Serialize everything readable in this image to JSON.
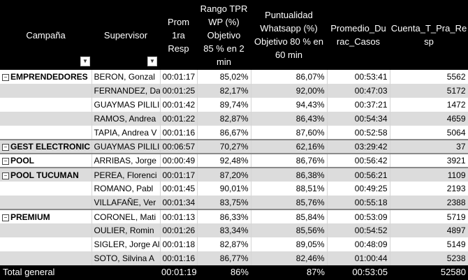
{
  "headers": {
    "campana": "Campaña",
    "supervisor": "Supervisor",
    "prom_1ra_resp": [
      "Prom",
      "1ra",
      "Resp"
    ],
    "rango_tpr": [
      "Rango TPR",
      "WP (%)",
      "Objetivo",
      "85 % en 2",
      "min"
    ],
    "puntualidad": [
      "Puntualidad",
      "Whatsapp (%)",
      "Objetivo 80 % en",
      "60 min"
    ],
    "promedio_durac": [
      "Promedio_Du",
      "rac_Casos"
    ],
    "cuenta": [
      "Cuenta_T_Pra_Re",
      "sp"
    ]
  },
  "filter_icon": "dropdown-arrow-icon",
  "rows": [
    {
      "campana": "EMPRENDEDORES",
      "supervisor": "BERON, Gonzal",
      "prom": "00:01:17",
      "rango": "85,02%",
      "puntualidad": "86,07%",
      "durac": "00:53:41",
      "cuenta": "5562"
    },
    {
      "campana": "",
      "supervisor": "FERNANDEZ, Da",
      "prom": "00:01:25",
      "rango": "82,17%",
      "puntualidad": "92,00%",
      "durac": "00:47:03",
      "cuenta": "5172"
    },
    {
      "campana": "",
      "supervisor": "GUAYMAS PILILI",
      "prom": "00:01:42",
      "rango": "89,74%",
      "puntualidad": "94,43%",
      "durac": "00:37:21",
      "cuenta": "1472"
    },
    {
      "campana": "",
      "supervisor": "RAMOS, Andrea",
      "prom": "00:01:22",
      "rango": "82,87%",
      "puntualidad": "86,43%",
      "durac": "00:54:34",
      "cuenta": "4659"
    },
    {
      "campana": "",
      "supervisor": "TAPIA, Andrea V",
      "prom": "00:01:16",
      "rango": "86,67%",
      "puntualidad": "87,60%",
      "durac": "00:52:58",
      "cuenta": "5064"
    },
    {
      "campana": "GEST ELECTRONIC",
      "supervisor": "GUAYMAS PILILI",
      "prom": "00:06:57",
      "rango": "70,27%",
      "puntualidad": "62,16%",
      "durac": "03:29:42",
      "cuenta": "37"
    },
    {
      "campana": "POOL",
      "supervisor": "ARRIBAS, Jorge",
      "prom": "00:00:49",
      "rango": "92,48%",
      "puntualidad": "86,76%",
      "durac": "00:56:42",
      "cuenta": "3921"
    },
    {
      "campana": "POOL TUCUMAN",
      "supervisor": "PEREA, Florenci",
      "prom": "00:01:17",
      "rango": "87,20%",
      "puntualidad": "86,38%",
      "durac": "00:56:21",
      "cuenta": "1109"
    },
    {
      "campana": "",
      "supervisor": "ROMANO, Pabl",
      "prom": "00:01:45",
      "rango": "90,01%",
      "puntualidad": "88,51%",
      "durac": "00:49:25",
      "cuenta": "2193"
    },
    {
      "campana": "",
      "supervisor": "VILLAFAÑE, Ver",
      "prom": "00:01:34",
      "rango": "83,75%",
      "puntualidad": "85,76%",
      "durac": "00:55:18",
      "cuenta": "2388"
    },
    {
      "campana": "PREMIUM",
      "supervisor": "CORONEL, Mati",
      "prom": "00:01:13",
      "rango": "86,33%",
      "puntualidad": "85,84%",
      "durac": "00:53:09",
      "cuenta": "5719"
    },
    {
      "campana": "",
      "supervisor": "OULIER, Romin",
      "prom": "00:01:26",
      "rango": "83,34%",
      "puntualidad": "85,56%",
      "durac": "00:54:52",
      "cuenta": "4897"
    },
    {
      "campana": "",
      "supervisor": "SIGLER, Jorge Al",
      "prom": "00:01:18",
      "rango": "82,87%",
      "puntualidad": "89,05%",
      "durac": "00:48:09",
      "cuenta": "5149"
    },
    {
      "campana": "",
      "supervisor": "SOTO, Silvina A",
      "prom": "00:01:16",
      "rango": "86,77%",
      "puntualidad": "82,46%",
      "durac": "01:00:44",
      "cuenta": "5238"
    }
  ],
  "total": {
    "label": "Total general",
    "prom": "00:01:19",
    "rango": "86%",
    "puntualidad": "87%",
    "durac": "00:53:05",
    "cuenta": "52580"
  }
}
